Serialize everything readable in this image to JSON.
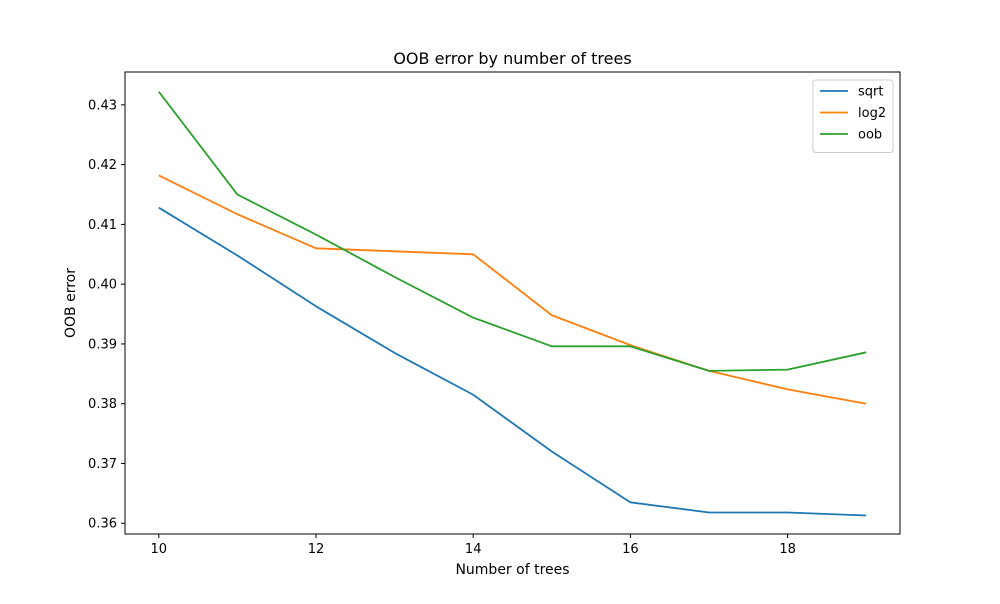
{
  "chart_data": {
    "type": "line",
    "title": "OOB error by number of trees",
    "xlabel": "Number of trees",
    "ylabel": "OOB error",
    "x": [
      10,
      11,
      12,
      13,
      14,
      15,
      16,
      17,
      18,
      19
    ],
    "xlim": [
      9.57,
      19.43
    ],
    "ylim": [
      0.3582,
      0.4355
    ],
    "xticks": [
      10,
      12,
      14,
      16,
      18
    ],
    "yticks": [
      0.36,
      0.37,
      0.38,
      0.39,
      0.4,
      0.41,
      0.42,
      0.43
    ],
    "xtick_labels": [
      "10",
      "12",
      "14",
      "16",
      "18"
    ],
    "ytick_labels": [
      "0.36",
      "0.37",
      "0.38",
      "0.39",
      "0.40",
      "0.41",
      "0.42",
      "0.43"
    ],
    "grid": false,
    "legend_position": "top-right",
    "series": [
      {
        "name": "sqrt",
        "color": "#1f77b4",
        "values": [
          0.4128,
          0.4048,
          0.3963,
          0.3885,
          0.3815,
          0.372,
          0.3635,
          0.3618,
          0.3618,
          0.3613
        ]
      },
      {
        "name": "log2",
        "color": "#ff7f0e",
        "values": [
          0.4182,
          0.4117,
          0.406,
          0.4055,
          0.405,
          0.3948,
          0.3898,
          0.3855,
          0.3824,
          0.38
        ]
      },
      {
        "name": "oob",
        "color": "#2ca02c",
        "values": [
          0.4322,
          0.415,
          0.4083,
          0.4012,
          0.3944,
          0.3896,
          0.3896,
          0.3855,
          0.3857,
          0.3886
        ]
      }
    ]
  }
}
